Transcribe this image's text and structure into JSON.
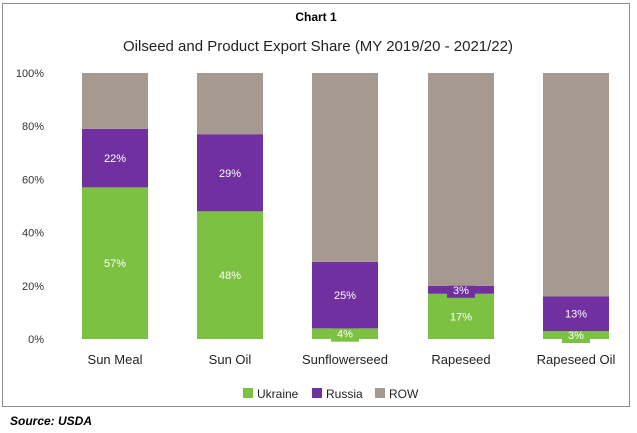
{
  "header": {
    "label": "Chart 1"
  },
  "source": "Source: USDA",
  "colors": {
    "Ukraine": "#7dc142",
    "Russia": "#7030a0",
    "ROW": "#a6998f"
  },
  "chart_data": {
    "type": "bar",
    "stacked": true,
    "title": "Oilseed and Product Export Share (MY 2019/20 - 2021/22)",
    "categories": [
      "Sun Meal",
      "Sun Oil",
      "Sunflowerseed",
      "Rapeseed",
      "Rapeseed Oil"
    ],
    "series": [
      {
        "name": "Ukraine",
        "values": [
          57,
          48,
          4,
          17,
          3
        ],
        "labels": [
          "57%",
          "48%",
          "4%",
          "17%",
          "3%"
        ]
      },
      {
        "name": "Russia",
        "values": [
          22,
          29,
          25,
          3,
          13
        ],
        "labels": [
          "22%",
          "29%",
          "25%",
          "3%",
          "13%"
        ]
      },
      {
        "name": "ROW",
        "values": [
          21,
          23,
          71,
          80,
          84
        ],
        "labels": [
          "",
          "",
          "",
          "",
          ""
        ]
      }
    ],
    "yticks": [
      "0%",
      "20%",
      "40%",
      "60%",
      "80%",
      "100%"
    ],
    "ylim": [
      0,
      100
    ],
    "grid": false,
    "legend_position": "bottom"
  }
}
